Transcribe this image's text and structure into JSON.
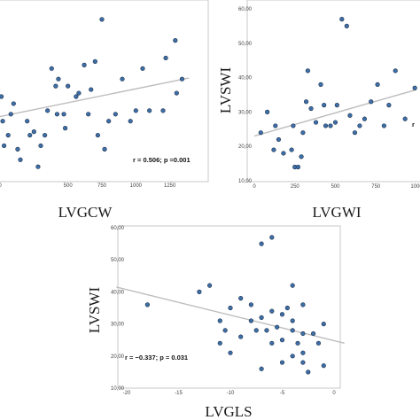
{
  "chart_data": [
    {
      "id": "top-left",
      "type": "scatter",
      "xlabel": "LVGCW",
      "ylabel": "",
      "xlim": [
        0,
        1500
      ],
      "ylim": [
        10,
        60
      ],
      "xticks": [
        0,
        500,
        750,
        1000,
        1250
      ],
      "xtick_labels": [
        "0",
        "500",
        "750",
        "1000",
        "1250"
      ],
      "yticks": [],
      "ytick_labels": [],
      "annotation": "r = 0.506; p =0.001",
      "fit": {
        "x": [
          0,
          1390
        ],
        "y": [
          29.3,
          40.3
        ]
      },
      "points": [
        [
          10,
          35
        ],
        [
          20,
          28
        ],
        [
          30,
          21
        ],
        [
          60,
          24
        ],
        [
          80,
          30
        ],
        [
          100,
          33
        ],
        [
          130,
          20
        ],
        [
          150,
          17
        ],
        [
          200,
          28
        ],
        [
          220,
          24
        ],
        [
          250,
          25
        ],
        [
          280,
          15
        ],
        [
          300,
          21
        ],
        [
          330,
          24
        ],
        [
          350,
          31
        ],
        [
          380,
          43
        ],
        [
          410,
          38
        ],
        [
          420,
          30
        ],
        [
          430,
          40
        ],
        [
          470,
          30
        ],
        [
          480,
          26
        ],
        [
          500,
          38
        ],
        [
          560,
          35
        ],
        [
          580,
          36
        ],
        [
          620,
          44
        ],
        [
          650,
          30
        ],
        [
          670,
          37
        ],
        [
          700,
          45
        ],
        [
          720,
          24
        ],
        [
          750,
          57
        ],
        [
          770,
          20
        ],
        [
          800,
          28
        ],
        [
          850,
          30
        ],
        [
          900,
          40
        ],
        [
          960,
          28
        ],
        [
          1000,
          31
        ],
        [
          1050,
          43
        ],
        [
          1100,
          31
        ],
        [
          1200,
          31
        ],
        [
          1220,
          46
        ],
        [
          1290,
          51
        ],
        [
          1300,
          36
        ],
        [
          1340,
          40
        ]
      ]
    },
    {
      "id": "top-right",
      "type": "scatter",
      "xlabel": "LVGWI",
      "ylabel": "LVSWI",
      "xlim": [
        0,
        1000
      ],
      "ylim": [
        10,
        60
      ],
      "xticks": [
        0,
        250,
        500,
        750,
        1000
      ],
      "xtick_labels": [
        "0",
        "250",
        "500",
        "750",
        "1000"
      ],
      "yticks": [
        10,
        20,
        30,
        40,
        50,
        60
      ],
      "ytick_labels": [
        "10,00",
        "20,00",
        "30,00",
        "40,00",
        "50,00",
        "60,00"
      ],
      "annotation": "r",
      "fit": {
        "x": [
          0,
          1000
        ],
        "y": [
          23.0,
          36.5
        ]
      },
      "points": [
        [
          40,
          24
        ],
        [
          80,
          30
        ],
        [
          120,
          19
        ],
        [
          130,
          26
        ],
        [
          150,
          22
        ],
        [
          180,
          18
        ],
        [
          230,
          19
        ],
        [
          240,
          26
        ],
        [
          250,
          14
        ],
        [
          270,
          14
        ],
        [
          290,
          17
        ],
        [
          300,
          24
        ],
        [
          320,
          33
        ],
        [
          330,
          42
        ],
        [
          350,
          31
        ],
        [
          380,
          27
        ],
        [
          410,
          38
        ],
        [
          430,
          32
        ],
        [
          440,
          26
        ],
        [
          470,
          26
        ],
        [
          500,
          27
        ],
        [
          510,
          32
        ],
        [
          540,
          57
        ],
        [
          570,
          55
        ],
        [
          590,
          29
        ],
        [
          620,
          24
        ],
        [
          650,
          26
        ],
        [
          680,
          28
        ],
        [
          720,
          33
        ],
        [
          760,
          38
        ],
        [
          800,
          26
        ],
        [
          830,
          32
        ],
        [
          870,
          42
        ],
        [
          930,
          28
        ],
        [
          990,
          37
        ]
      ]
    },
    {
      "id": "bottom",
      "type": "scatter",
      "xlabel": "LVGLS",
      "ylabel": "LVSWI",
      "xlim": [
        -20,
        0
      ],
      "ylim": [
        10,
        60
      ],
      "xticks": [
        -20,
        -15,
        -10,
        -5,
        0
      ],
      "xtick_labels": [
        "-20",
        "-15",
        "-10",
        "-5",
        "0"
      ],
      "yticks": [
        10,
        20,
        30,
        40,
        50,
        60
      ],
      "ytick_labels": [
        "10,00",
        "20,00",
        "30,00",
        "40,00",
        "50,00",
        "60,00"
      ],
      "annotation": "r = −0.337; p = 0.031",
      "fit": {
        "x": [
          -21,
          1
        ],
        "y": [
          41.5,
          24.0
        ]
      },
      "points": [
        [
          -18,
          36
        ],
        [
          -13,
          40
        ],
        [
          -12,
          42
        ],
        [
          -11,
          31
        ],
        [
          -11,
          24
        ],
        [
          -10.5,
          28
        ],
        [
          -10,
          35
        ],
        [
          -10,
          21
        ],
        [
          -9,
          38
        ],
        [
          -9,
          26
        ],
        [
          -8,
          36
        ],
        [
          -8,
          31
        ],
        [
          -7.5,
          28
        ],
        [
          -7,
          55
        ],
        [
          -7,
          32
        ],
        [
          -7,
          16
        ],
        [
          -6.5,
          28
        ],
        [
          -6,
          57
        ],
        [
          -6,
          34
        ],
        [
          -6,
          24
        ],
        [
          -5.5,
          29
        ],
        [
          -5,
          33
        ],
        [
          -5,
          25
        ],
        [
          -5,
          18
        ],
        [
          -4.5,
          35
        ],
        [
          -4,
          42
        ],
        [
          -4,
          31
        ],
        [
          -4,
          28
        ],
        [
          -4,
          20
        ],
        [
          -3.5,
          24
        ],
        [
          -3,
          36
        ],
        [
          -3,
          27
        ],
        [
          -3,
          21
        ],
        [
          -3,
          18
        ],
        [
          -2.5,
          15
        ],
        [
          -2,
          27
        ],
        [
          -1.5,
          24
        ],
        [
          -1,
          30
        ],
        [
          -1,
          17
        ]
      ]
    }
  ]
}
